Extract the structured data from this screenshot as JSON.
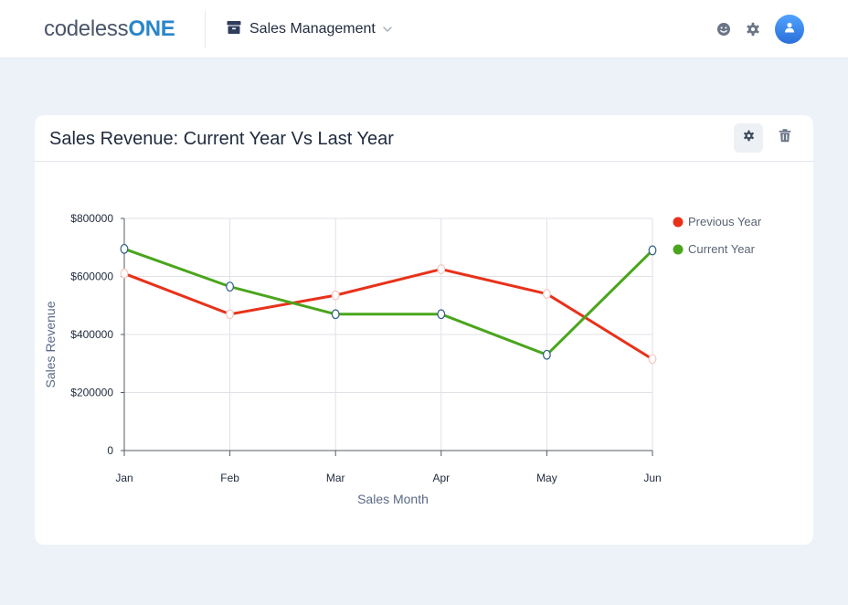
{
  "logo": {
    "prefix": "codeless",
    "suffix": "ONE"
  },
  "header": {
    "app_name": "Sales Management",
    "app_icon": "box-icon",
    "dropdown_icon": "chevron-down-icon",
    "feedback_icon": "smiley-icon",
    "settings_icon": "gear-icon",
    "avatar_icon": "user-icon"
  },
  "card": {
    "title": "Sales Revenue: Current Year Vs Last Year",
    "settings_icon": "gear-icon",
    "delete_icon": "trash-icon"
  },
  "colors": {
    "brand_blue": "#2a86c9",
    "previous_year": "#e8311a",
    "current_year": "#4aa51c",
    "avatar": "#3a8ef0"
  },
  "chart_data": {
    "type": "line",
    "categories": [
      "Jan",
      "Feb",
      "Mar",
      "Apr",
      "May",
      "Jun"
    ],
    "series": [
      {
        "name": "Previous Year",
        "values": [
          610000,
          470000,
          535000,
          625000,
          540000,
          315000
        ]
      },
      {
        "name": "Current Year",
        "values": [
          695000,
          565000,
          470000,
          470000,
          330000,
          690000
        ]
      }
    ],
    "xlabel": "Sales Month",
    "ylabel": "Sales Revenue",
    "ylim": [
      0,
      800000
    ],
    "y_ticks": [
      0,
      200000,
      400000,
      600000,
      800000
    ],
    "y_tick_labels": [
      "0",
      "$200000",
      "$400000",
      "$600000",
      "$800000"
    ],
    "grid": true,
    "legend_position": "right"
  }
}
